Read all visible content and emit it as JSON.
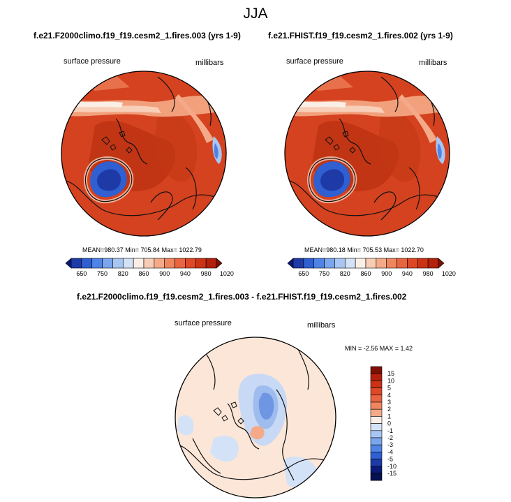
{
  "figure": {
    "title": "JJA",
    "left_panel": {
      "title": "f.e21.F2000climo.f19_f19.cesm2_1.fires.003 (yrs 1-9)",
      "variable": "surface pressure",
      "units": "millibars",
      "stats": "MEAN=980.37  Min= 705.84  Max= 1022.79"
    },
    "right_panel": {
      "title": "f.e21.FHIST.f19_f19.cesm2_1.fires.002 (yrs 1-9)",
      "variable": "surface pressure",
      "units": "millibars",
      "stats": "MEAN=980.18  Min= 705.53  Max= 1022.70"
    },
    "diff_panel": {
      "title": "f.e21.F2000climo.f19_f19.cesm2_1.fires.003 - f.e21.FHIST.f19_f19.cesm2_1.fires.002",
      "variable": "surface pressure",
      "units": "millibars",
      "stats": "MIN =  -2.56 MAX =   1.42"
    },
    "colorbar_abs": {
      "labels": [
        "650",
        "750",
        "820",
        "860",
        "900",
        "940",
        "980",
        "1020"
      ],
      "colors": [
        "#0b1a78",
        "#1d3aa6",
        "#2f5fd0",
        "#4f84e6",
        "#7aa6ee",
        "#a8c6f3",
        "#d4e2f7",
        "#fbeee6",
        "#f8cdb6",
        "#f4aa88",
        "#ef8660",
        "#e96440",
        "#de4826",
        "#cc3214",
        "#b3200b",
        "#7d0f05"
      ]
    },
    "colorbar_diff": {
      "labels": [
        "15",
        "10",
        "5",
        "4",
        "3",
        "2",
        "1",
        "0",
        "-1",
        "-2",
        "-3",
        "-4",
        "-5",
        "-10",
        "-15"
      ],
      "colors": [
        "#7d0f05",
        "#b3200b",
        "#cc3214",
        "#de4826",
        "#e96440",
        "#ef8660",
        "#f4aa88",
        "#fbeee6",
        "#d4e2f7",
        "#a8c6f3",
        "#7aa6ee",
        "#4f84e6",
        "#2f5fd0",
        "#1d3aa6",
        "#0b1a78",
        "#061050"
      ]
    }
  }
}
